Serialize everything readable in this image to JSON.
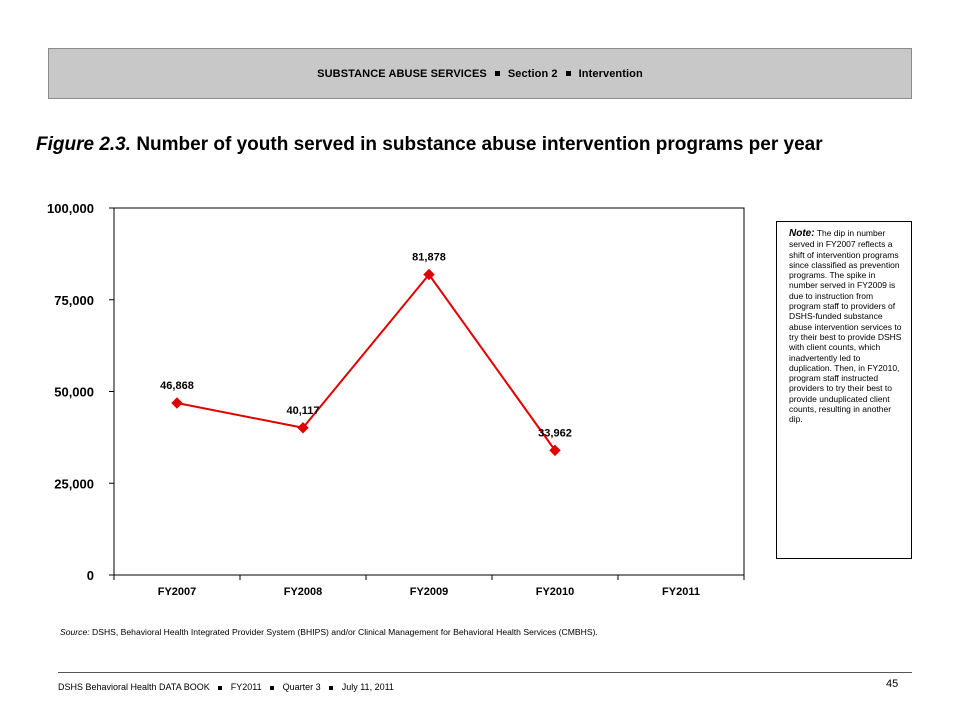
{
  "header": {
    "part1": "SUBSTANCE ABUSE SERVICES",
    "part2": "Section 2",
    "part3": "Intervention"
  },
  "figure": {
    "label": "Figure 2.3.",
    "title": "Number of youth served in substance abuse intervention programs per year"
  },
  "note": {
    "label": "Note:",
    "text": "The dip in number served in FY2007 reflects a shift of intervention programs since classified as prevention programs. The spike in number served in FY2009 is due to instruction from program staff to providers of DSHS-funded substance abuse intervention services to try their best to provide DSHS with client counts, which inadvertently led to duplication. Then, in FY2010, program staff instructed providers to try their best to provide unduplicated client counts, resulting in another dip."
  },
  "source": {
    "label": "Source:",
    "text": "DSHS, Behavioral Health Integrated Provider System (BHIPS) and/or Clinical Management for Behavioral Health Services (CMBHS)."
  },
  "footer": {
    "part1": "DSHS Behavioral Health DATA BOOK",
    "part2": "FY2011",
    "part3": "Quarter 3",
    "part4": "July 11, 2011",
    "page": "45"
  },
  "chart_data": {
    "type": "line",
    "title": "",
    "xlabel": "",
    "ylabel": "",
    "categories": [
      "FY2007",
      "FY2008",
      "FY2009",
      "FY2010",
      "FY2011"
    ],
    "series": [
      {
        "values": [
          46868,
          40117,
          81878,
          33962,
          null
        ],
        "labels": [
          "46,868",
          "40,117",
          "81,878",
          "33,962",
          ""
        ],
        "color": "#e00000",
        "marker": "diamond"
      }
    ],
    "ylim": [
      0,
      100000
    ],
    "yticks": [
      0,
      25000,
      50000,
      75000,
      100000
    ],
    "ytick_labels": [
      "0",
      "25,000",
      "50,000",
      "75,000",
      "100,000"
    ],
    "grid": false,
    "legend": "none"
  }
}
